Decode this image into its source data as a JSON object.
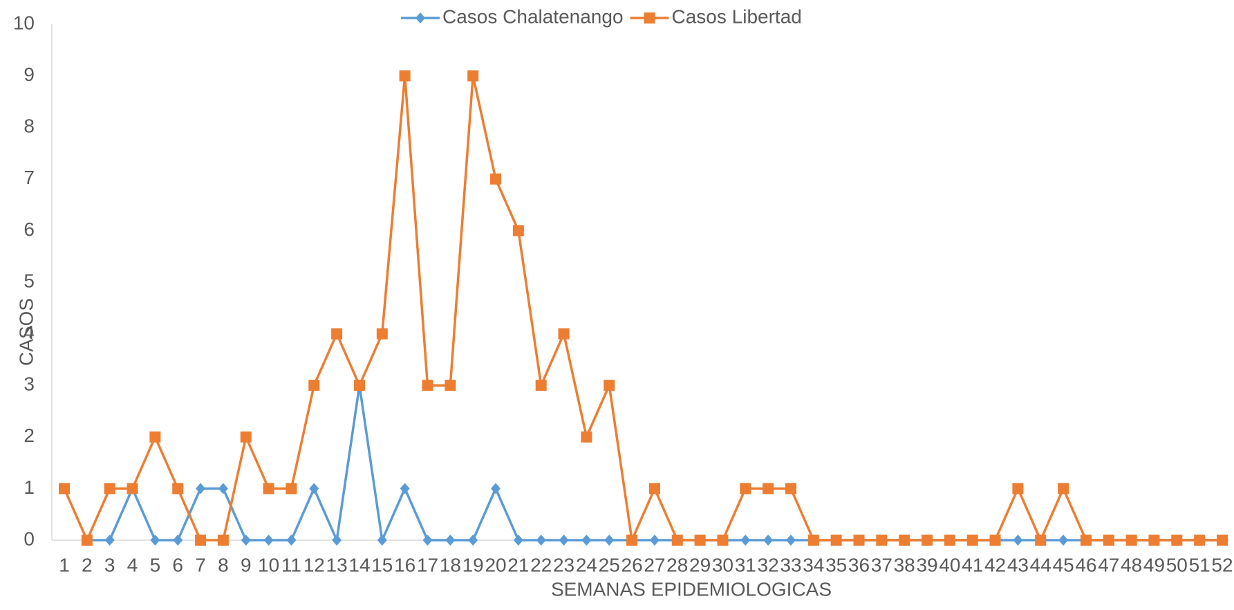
{
  "chart_data": {
    "type": "line",
    "x_label": "SEMANAS EPIDEMIOLOGICAS",
    "y_label": "CASOS",
    "categories": [
      "1",
      "2",
      "3",
      "4",
      "5",
      "6",
      "7",
      "8",
      "9",
      "10",
      "11",
      "12",
      "13",
      "14",
      "15",
      "16",
      "17",
      "18",
      "19",
      "20",
      "21",
      "22",
      "23",
      "24",
      "25",
      "26",
      "27",
      "28",
      "29",
      "30",
      "31",
      "32",
      "33",
      "34",
      "35",
      "36",
      "37",
      "38",
      "39",
      "40",
      "41",
      "42",
      "43",
      "44",
      "45",
      "46",
      "47",
      "48",
      "49",
      "50",
      "51",
      "52"
    ],
    "series": [
      {
        "name": "Casos Chalatenango",
        "color": "#5b9bd5",
        "marker": "diamond",
        "values": [
          null,
          0,
          0,
          1,
          0,
          0,
          1,
          1,
          0,
          0,
          0,
          1,
          0,
          3,
          0,
          1,
          0,
          0,
          0,
          1,
          0,
          0,
          0,
          0,
          0,
          0,
          0,
          0,
          0,
          0,
          0,
          0,
          0,
          0,
          0,
          0,
          0,
          0,
          0,
          0,
          0,
          0,
          0,
          0,
          0,
          0,
          0,
          0,
          0,
          0,
          0,
          0
        ]
      },
      {
        "name": "Casos Libertad",
        "color": "#ed7d31",
        "marker": "square",
        "values": [
          1,
          0,
          1,
          1,
          2,
          1,
          0,
          0,
          2,
          1,
          1,
          3,
          4,
          3,
          4,
          9,
          3,
          3,
          9,
          7,
          6,
          3,
          4,
          2,
          3,
          0,
          1,
          0,
          0,
          0,
          1,
          1,
          1,
          0,
          0,
          0,
          0,
          0,
          0,
          0,
          0,
          0,
          1,
          0,
          1,
          0,
          0,
          0,
          0,
          0,
          0,
          0
        ]
      }
    ],
    "ylim": [
      0,
      10
    ],
    "yticks": [
      0,
      1,
      2,
      3,
      4,
      5,
      6,
      7,
      8,
      9,
      10
    ],
    "legend": "top"
  }
}
